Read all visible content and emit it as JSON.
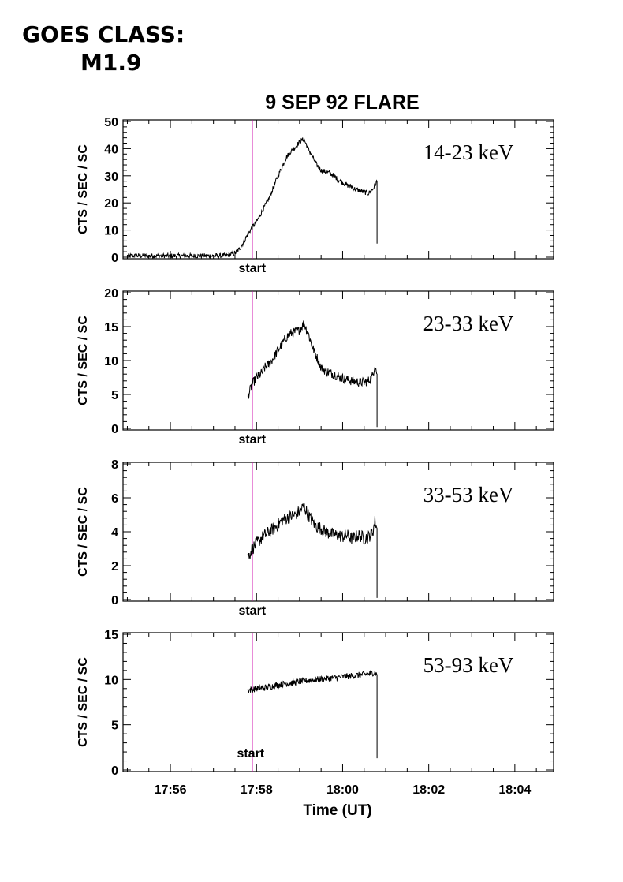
{
  "header": {
    "line1": "GOES CLASS:",
    "line2": "M1.9"
  },
  "chart_data": {
    "type": "line",
    "title": "9 SEP 92 FLARE",
    "xlabel": "Time (UT)",
    "x_unit": "minutes of hour 17 UT",
    "xlim": [
      54.9,
      64.9
    ],
    "x_ticks": [
      56,
      58,
      60,
      62,
      64
    ],
    "x_tick_labels": [
      "17:56",
      "17:58",
      "18:00",
      "18:02",
      "18:04"
    ],
    "start_time": 57.9,
    "start_label": "start",
    "colors": {
      "data": "#000000",
      "start_line": "#cc00aa"
    },
    "panels": [
      {
        "band": "14-23 keV",
        "ylabel": "CTS / SEC / SC",
        "ylim": [
          0,
          50
        ],
        "y_ticks": [
          0,
          10,
          20,
          30,
          40,
          50
        ],
        "x": [
          55.0,
          55.5,
          56.0,
          56.5,
          57.0,
          57.3,
          57.5,
          57.6,
          57.7,
          57.8,
          57.9,
          58.0,
          58.1,
          58.2,
          58.3,
          58.4,
          58.5,
          58.6,
          58.7,
          58.8,
          58.9,
          59.0,
          59.1,
          59.2,
          59.3,
          59.4,
          59.5,
          59.6,
          59.7,
          59.8,
          59.9,
          60.0,
          60.1,
          60.2,
          60.3,
          60.4,
          60.5,
          60.6,
          60.7,
          60.75,
          60.8,
          60.8
        ],
        "y": [
          0.5,
          0.5,
          0.5,
          0.5,
          0.5,
          0.6,
          1.5,
          3.0,
          5.5,
          8.5,
          11.0,
          13.0,
          16.0,
          19.0,
          22.0,
          26.0,
          30.0,
          33.5,
          37.0,
          39.0,
          40.5,
          42.5,
          43.5,
          40.0,
          37.0,
          34.0,
          32.0,
          31.5,
          31.0,
          30.0,
          28.5,
          27.5,
          26.5,
          26.0,
          25.0,
          24.5,
          24.0,
          23.5,
          25.0,
          26.5,
          28.0,
          5.0
        ]
      },
      {
        "band": "23-33 keV",
        "ylabel": "CTS / SEC / SC",
        "ylim": [
          0,
          20
        ],
        "y_ticks": [
          0,
          5,
          10,
          15,
          20
        ],
        "x": [
          57.8,
          57.9,
          58.0,
          58.1,
          58.2,
          58.3,
          58.4,
          58.5,
          58.6,
          58.7,
          58.8,
          58.9,
          59.0,
          59.1,
          59.2,
          59.3,
          59.4,
          59.5,
          59.6,
          59.7,
          59.8,
          59.9,
          60.0,
          60.1,
          60.2,
          60.3,
          60.4,
          60.5,
          60.6,
          60.7,
          60.75,
          60.8,
          60.8
        ],
        "y": [
          4.7,
          6.5,
          7.5,
          8.0,
          9.0,
          9.5,
          10.5,
          11.5,
          12.5,
          13.5,
          14.0,
          14.2,
          14.5,
          15.5,
          14.0,
          12.0,
          10.5,
          9.0,
          8.5,
          8.2,
          8.0,
          7.6,
          7.4,
          7.2,
          7.0,
          6.9,
          6.8,
          6.8,
          7.0,
          7.8,
          9.5,
          8.0,
          0.2
        ]
      },
      {
        "band": "33-53 keV",
        "ylabel": "CTS / SEC / SC",
        "ylim": [
          0,
          8
        ],
        "y_ticks": [
          0,
          2,
          4,
          6,
          8
        ],
        "x": [
          57.8,
          57.9,
          58.0,
          58.1,
          58.2,
          58.3,
          58.4,
          58.5,
          58.6,
          58.7,
          58.8,
          58.9,
          59.0,
          59.1,
          59.2,
          59.3,
          59.4,
          59.5,
          59.6,
          59.7,
          59.8,
          59.9,
          60.0,
          60.1,
          60.2,
          60.3,
          60.4,
          60.5,
          60.6,
          60.7,
          60.75,
          60.8,
          60.8
        ],
        "y": [
          2.5,
          3.0,
          3.3,
          3.6,
          3.8,
          4.0,
          4.2,
          4.4,
          4.7,
          4.8,
          4.9,
          5.0,
          5.2,
          5.5,
          5.0,
          4.6,
          4.3,
          4.2,
          4.0,
          3.9,
          3.8,
          3.8,
          3.7,
          3.8,
          3.6,
          3.7,
          3.8,
          3.6,
          3.7,
          4.0,
          4.6,
          4.2,
          0.1
        ]
      },
      {
        "band": "53-93 keV",
        "ylabel": "CTS / SEC / SC",
        "ylim": [
          0,
          15
        ],
        "y_ticks": [
          0,
          5,
          10,
          15
        ],
        "x": [
          57.8,
          58.0,
          58.2,
          58.4,
          58.6,
          58.8,
          59.0,
          59.2,
          59.4,
          59.6,
          59.8,
          60.0,
          60.2,
          60.4,
          60.6,
          60.75,
          60.8,
          60.8
        ],
        "y": [
          8.8,
          9.0,
          9.1,
          9.3,
          9.5,
          9.6,
          9.8,
          9.9,
          10.0,
          10.1,
          10.2,
          10.3,
          10.4,
          10.5,
          10.6,
          10.8,
          10.5,
          1.3
        ]
      }
    ]
  }
}
